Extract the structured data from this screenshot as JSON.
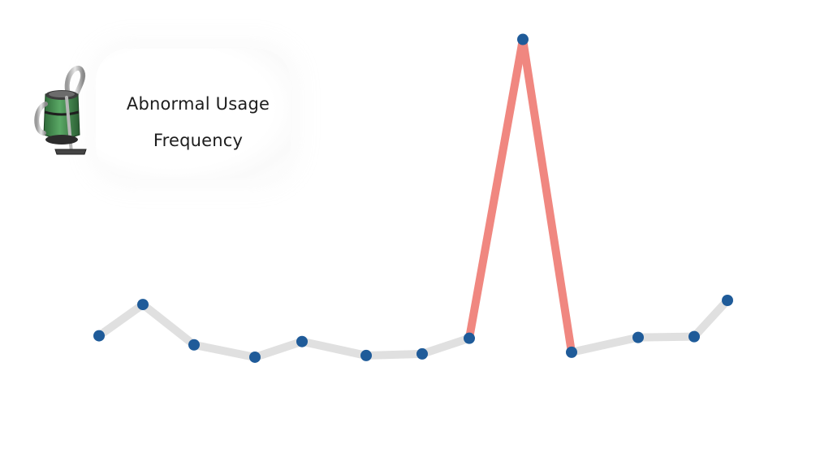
{
  "title": {
    "line1": "Abnormal Usage",
    "line2": "Frequency"
  },
  "logo_icon": "vacuum-cleaner-icon",
  "colors": {
    "normal_segment": "#e0e0e0",
    "abnormal_segment": "#f08780",
    "point": "#1f5b99",
    "title_text": "#1d1d1d"
  },
  "chart_data": {
    "type": "line",
    "title": "Abnormal Usage Frequency",
    "xlabel": "",
    "ylabel": "",
    "axes_visible": false,
    "grid": false,
    "x": [
      1,
      2,
      3,
      4,
      5,
      6,
      7,
      8,
      9,
      10,
      11,
      12,
      13
    ],
    "values": [
      1.0,
      1.38,
      0.89,
      0.74,
      0.93,
      0.76,
      0.78,
      0.97,
      4.6,
      0.8,
      0.98,
      0.99,
      1.43
    ],
    "highlight_segments": [
      [
        7,
        8
      ],
      [
        8,
        9
      ]
    ],
    "ylim": [
      0,
      5
    ]
  }
}
